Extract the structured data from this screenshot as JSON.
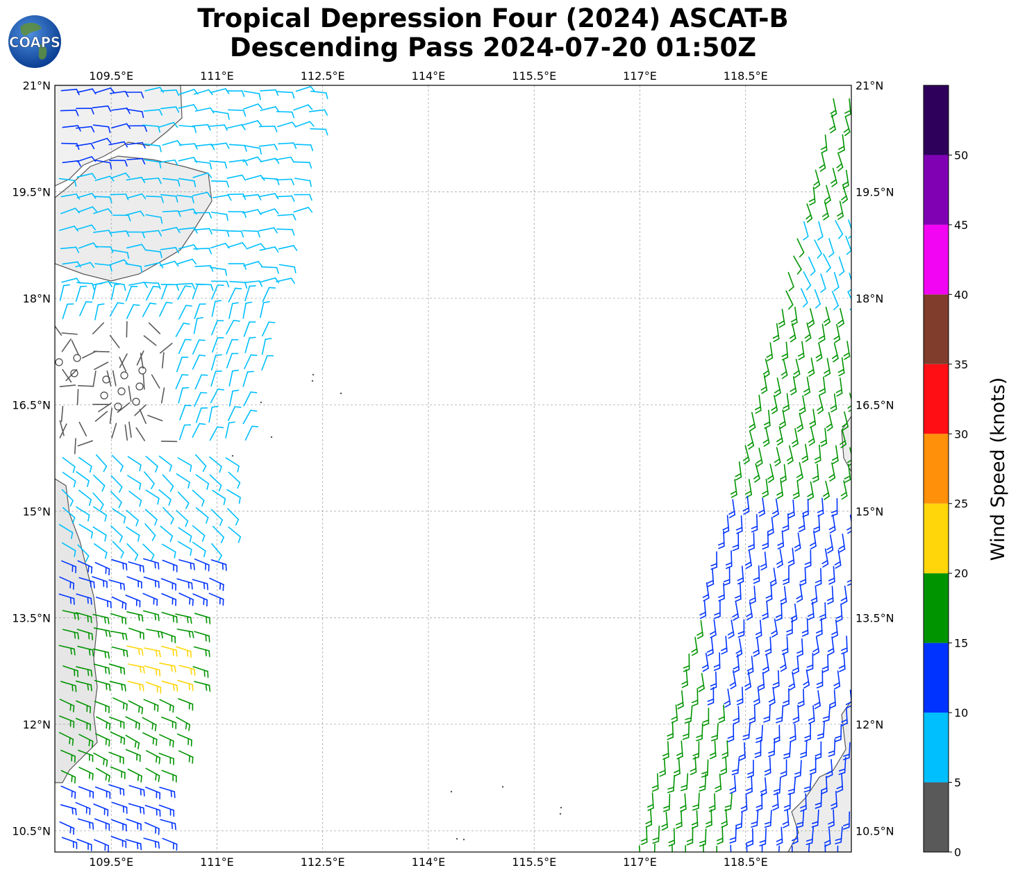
{
  "title": {
    "line1": "Tropical Depression Four (2024) ASCAT-B",
    "line2": "Descending Pass 2024-07-20 01:50Z"
  },
  "logo": {
    "text": "COAPS",
    "icon": "globe-logo-icon"
  },
  "map": {
    "lon_range": [
      108.7,
      120.0
    ],
    "lat_range": [
      10.2,
      21.0
    ],
    "lon_ticks": [
      "109.5°E",
      "111°E",
      "112.5°E",
      "114°E",
      "115.5°E",
      "117°E",
      "118.5°E"
    ],
    "lon_tick_values": [
      109.5,
      111,
      112.5,
      114,
      115.5,
      117,
      118.5
    ],
    "lat_ticks": [
      "21°N",
      "19.5°N",
      "18°N",
      "16.5°N",
      "15°N",
      "13.5°N",
      "12°N",
      "10.5°N"
    ],
    "lat_tick_values": [
      21,
      19.5,
      18,
      16.5,
      15,
      13.5,
      12,
      10.5
    ],
    "gridlines": true
  },
  "colorbar": {
    "title": "Wind Speed (knots)",
    "labels": [
      "0",
      "5",
      "10",
      "15",
      "20",
      "25",
      "30",
      "35",
      "40",
      "45",
      "50"
    ],
    "bins": [
      {
        "min": 0,
        "max": 5,
        "color": "#595959"
      },
      {
        "min": 5,
        "max": 10,
        "color": "#00bfff"
      },
      {
        "min": 10,
        "max": 15,
        "color": "#0033ff"
      },
      {
        "min": 15,
        "max": 20,
        "color": "#009400"
      },
      {
        "min": 20,
        "max": 25,
        "color": "#ffd60a"
      },
      {
        "min": 25,
        "max": 30,
        "color": "#ff900a"
      },
      {
        "min": 30,
        "max": 35,
        "color": "#ff0f14"
      },
      {
        "min": 35,
        "max": 40,
        "color": "#803d2b"
      },
      {
        "min": 40,
        "max": 45,
        "color": "#f205f2"
      },
      {
        "min": 45,
        "max": 50,
        "color": "#8000b3"
      },
      {
        "min": 50,
        "max": 55,
        "color": "#2e005c"
      }
    ]
  }
}
